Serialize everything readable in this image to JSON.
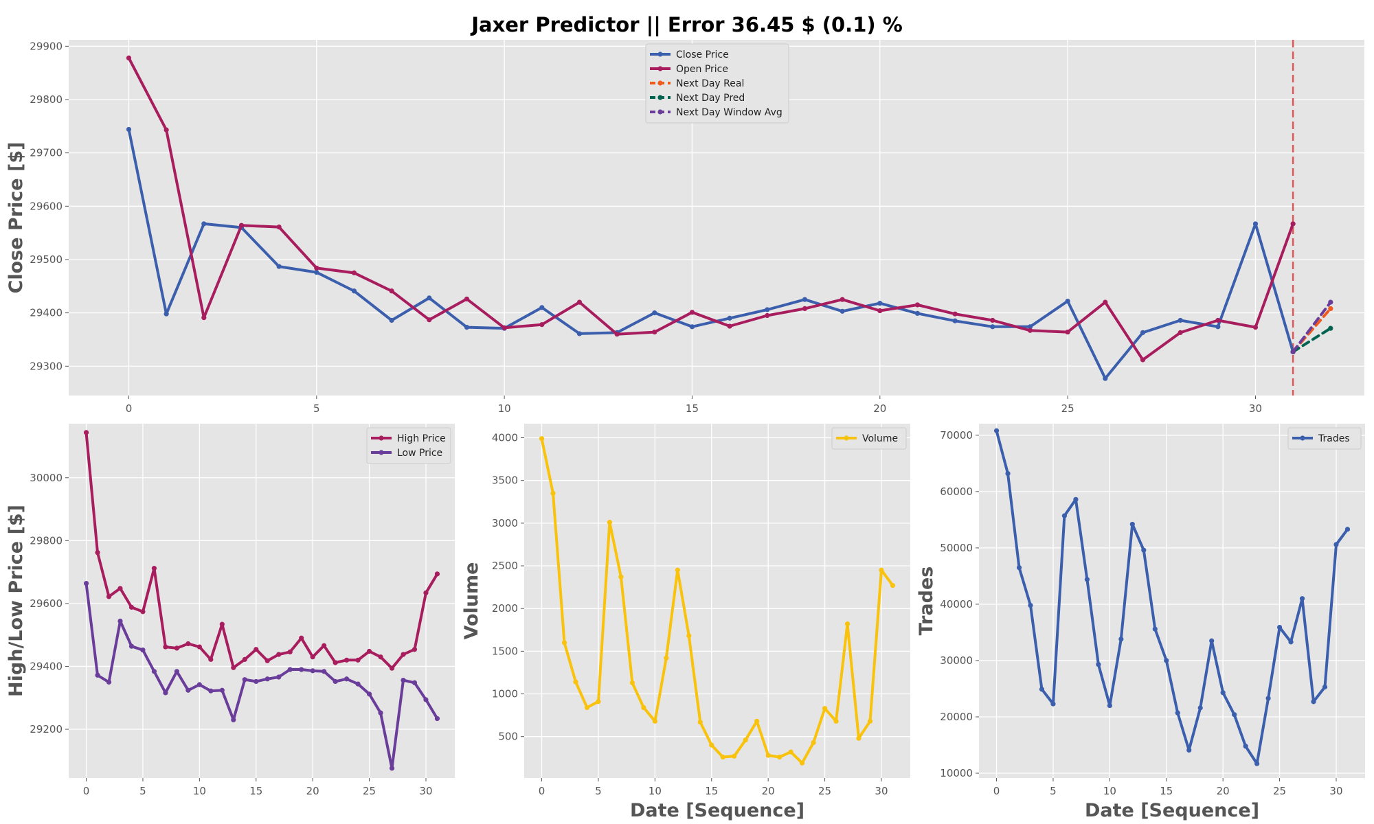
{
  "title": "Jaxer Predictor || Error 36.45 $ (0.1) %",
  "chart_data": [
    {
      "type": "line",
      "id": "main",
      "xlabel": "",
      "ylabel": "Close Price [$]",
      "xlim": [
        -1.6,
        32.9
      ],
      "ylim": [
        29245,
        29912
      ],
      "xticks": [
        0,
        5,
        10,
        15,
        20,
        25,
        30
      ],
      "yticks": [
        29300,
        29400,
        29500,
        29600,
        29700,
        29800,
        29900
      ],
      "legend": "top-center",
      "grid": true,
      "vline": {
        "x": 31,
        "color": "#e15759",
        "style": "dashed"
      },
      "series": [
        {
          "name": "Close Price",
          "color": "#3b5fad",
          "style": "solid",
          "x": [
            0,
            1,
            2,
            3,
            4,
            5,
            6,
            7,
            8,
            9,
            10,
            11,
            12,
            13,
            14,
            15,
            16,
            17,
            18,
            19,
            20,
            21,
            22,
            23,
            24,
            25,
            26,
            27,
            28,
            29,
            30,
            31
          ],
          "values": [
            29744,
            29398,
            29567,
            29560,
            29487,
            29476,
            29441,
            29386,
            29428,
            29373,
            29371,
            29410,
            29361,
            29363,
            29400,
            29374,
            29390,
            29406,
            29425,
            29403,
            29418,
            29399,
            29385,
            29374,
            29374,
            29422,
            29277,
            29363,
            29386,
            29374,
            29567,
            29327
          ]
        },
        {
          "name": "Open Price",
          "color": "#a81d5e",
          "style": "solid",
          "x": [
            0,
            1,
            2,
            3,
            4,
            5,
            6,
            7,
            8,
            9,
            10,
            11,
            12,
            13,
            14,
            15,
            16,
            17,
            18,
            19,
            20,
            21,
            22,
            23,
            24,
            25,
            26,
            27,
            28,
            29,
            30,
            31
          ],
          "values": [
            29878,
            29743,
            29391,
            29564,
            29561,
            29484,
            29475,
            29441,
            29387,
            29426,
            29372,
            29378,
            29420,
            29360,
            29364,
            29401,
            29375,
            29395,
            29408,
            29425,
            29404,
            29415,
            29398,
            29386,
            29367,
            29364,
            29420,
            29312,
            29363,
            29386,
            29373,
            29567
          ]
        },
        {
          "name": "Next Day Real",
          "color": "#f05a1e",
          "style": "dashed",
          "x": [
            31,
            32
          ],
          "values": [
            29327,
            29408
          ]
        },
        {
          "name": "Next Day Pred",
          "color": "#006350",
          "style": "dashed",
          "x": [
            31,
            32
          ],
          "values": [
            29327,
            29371
          ]
        },
        {
          "name": "Next Day Window Avg",
          "color": "#6a3d9a",
          "style": "dashed",
          "x": [
            31,
            32
          ],
          "values": [
            29327,
            29420
          ]
        }
      ]
    },
    {
      "type": "line",
      "id": "highlow",
      "xlabel": "",
      "ylabel": "High/Low Price [$]",
      "xlim": [
        -1.55,
        32.55
      ],
      "ylim": [
        29045,
        30172
      ],
      "xticks": [
        0,
        5,
        10,
        15,
        20,
        25,
        30
      ],
      "yticks": [
        29200,
        29400,
        29600,
        29800,
        30000
      ],
      "legend": "top-right",
      "grid": true,
      "series": [
        {
          "name": "High Price",
          "color": "#a81d5e",
          "style": "solid",
          "x": [
            0,
            1,
            2,
            3,
            4,
            5,
            6,
            7,
            8,
            9,
            10,
            11,
            12,
            13,
            14,
            15,
            16,
            17,
            18,
            19,
            20,
            21,
            22,
            23,
            24,
            25,
            26,
            27,
            28,
            29,
            30,
            31
          ],
          "values": [
            30144,
            29762,
            29622,
            29648,
            29588,
            29574,
            29712,
            29462,
            29458,
            29472,
            29462,
            29422,
            29534,
            29396,
            29422,
            29454,
            29418,
            29438,
            29446,
            29490,
            29430,
            29466,
            29412,
            29420,
            29420,
            29448,
            29430,
            29394,
            29438,
            29454,
            29634,
            29694
          ]
        },
        {
          "name": "Low Price",
          "color": "#6a3d9a",
          "style": "solid",
          "x": [
            0,
            1,
            2,
            3,
            4,
            5,
            6,
            7,
            8,
            9,
            10,
            11,
            12,
            13,
            14,
            15,
            16,
            17,
            18,
            19,
            20,
            21,
            22,
            23,
            24,
            25,
            26,
            27,
            28,
            29,
            30,
            31
          ],
          "values": [
            29664,
            29372,
            29350,
            29544,
            29464,
            29452,
            29384,
            29316,
            29384,
            29324,
            29342,
            29322,
            29324,
            29230,
            29358,
            29352,
            29360,
            29366,
            29390,
            29390,
            29386,
            29384,
            29352,
            29360,
            29344,
            29312,
            29252,
            29076,
            29356,
            29348,
            29294,
            29234
          ]
        }
      ]
    },
    {
      "type": "line",
      "id": "volume",
      "xlabel": "Date [Sequence]",
      "ylabel": "Volume",
      "xlim": [
        -1.55,
        32.55
      ],
      "ylim": [
        15,
        4165
      ],
      "xticks": [
        0,
        5,
        10,
        15,
        20,
        25,
        30
      ],
      "yticks": [
        500,
        1000,
        1500,
        2000,
        2500,
        3000,
        3500,
        4000
      ],
      "legend": "top-right",
      "grid": true,
      "series": [
        {
          "name": "Volume",
          "color": "#f9c20d",
          "style": "solid",
          "x": [
            0,
            1,
            2,
            3,
            4,
            5,
            6,
            7,
            8,
            9,
            10,
            11,
            12,
            13,
            14,
            15,
            16,
            17,
            18,
            19,
            20,
            21,
            22,
            23,
            24,
            25,
            26,
            27,
            28,
            29,
            30,
            31
          ],
          "values": [
            3990,
            3350,
            1600,
            1140,
            840,
            910,
            3010,
            2370,
            1130,
            840,
            680,
            1420,
            2450,
            1680,
            670,
            400,
            260,
            270,
            460,
            680,
            280,
            260,
            320,
            190,
            430,
            830,
            680,
            1820,
            480,
            680,
            2450,
            2270
          ]
        }
      ]
    },
    {
      "type": "line",
      "id": "trades",
      "xlabel": "Date [Sequence]",
      "ylabel": "Trades",
      "xlim": [
        -1.55,
        32.55
      ],
      "ylim": [
        9150,
        72050
      ],
      "xticks": [
        0,
        5,
        10,
        15,
        20,
        25,
        30
      ],
      "yticks": [
        10000,
        20000,
        30000,
        40000,
        50000,
        60000,
        70000
      ],
      "legend": "top-right",
      "grid": true,
      "series": [
        {
          "name": "Trades",
          "color": "#3b5fad",
          "style": "solid",
          "x": [
            0,
            1,
            2,
            3,
            4,
            5,
            6,
            7,
            8,
            9,
            10,
            11,
            12,
            13,
            14,
            15,
            16,
            17,
            18,
            19,
            20,
            21,
            22,
            23,
            24,
            25,
            26,
            27,
            28,
            29,
            30,
            31
          ],
          "values": [
            70800,
            63200,
            46500,
            39800,
            24900,
            22300,
            55700,
            58600,
            44400,
            29300,
            22000,
            33800,
            54200,
            49600,
            35600,
            30000,
            20700,
            14100,
            21600,
            33500,
            24300,
            20400,
            14800,
            11700,
            23300,
            35900,
            33300,
            41000,
            22700,
            25300,
            50600,
            53300
          ]
        }
      ]
    }
  ]
}
